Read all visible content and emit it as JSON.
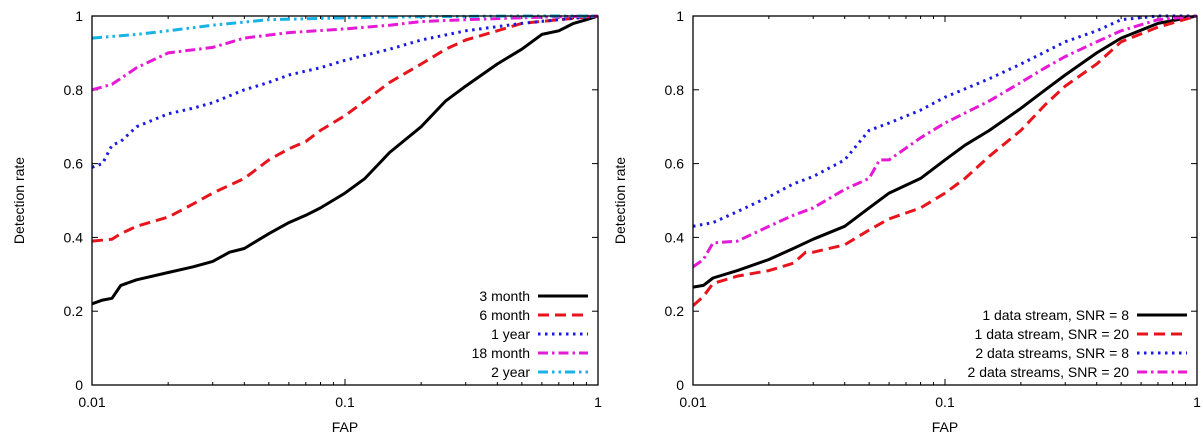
{
  "chart_data": [
    {
      "type": "line",
      "xlabel": "FAP",
      "ylabel": "Detection rate",
      "xscale": "log",
      "xlim": [
        0.01,
        1
      ],
      "ylim": [
        0,
        1
      ],
      "xticks": [
        "0.01",
        "0.1",
        "1"
      ],
      "yticks": [
        "0",
        "0.2",
        "0.4",
        "0.6",
        "0.8",
        "1"
      ],
      "legend_position": "bottom-right",
      "series": [
        {
          "name": "3 month",
          "color": "#000000",
          "dash": "solid",
          "x": [
            0.01,
            0.011,
            0.012,
            0.013,
            0.015,
            0.02,
            0.025,
            0.03,
            0.035,
            0.04,
            0.05,
            0.06,
            0.07,
            0.08,
            0.1,
            0.12,
            0.15,
            0.2,
            0.25,
            0.3,
            0.4,
            0.5,
            0.6,
            0.7,
            0.8,
            0.9,
            1.0
          ],
          "y": [
            0.22,
            0.23,
            0.235,
            0.27,
            0.285,
            0.305,
            0.32,
            0.335,
            0.36,
            0.37,
            0.41,
            0.44,
            0.46,
            0.48,
            0.52,
            0.56,
            0.63,
            0.7,
            0.77,
            0.81,
            0.87,
            0.91,
            0.95,
            0.96,
            0.98,
            0.99,
            1.0
          ]
        },
        {
          "name": "6 month",
          "color": "#e8141c",
          "dash": "dashed",
          "x": [
            0.01,
            0.012,
            0.013,
            0.015,
            0.02,
            0.025,
            0.03,
            0.04,
            0.05,
            0.06,
            0.07,
            0.08,
            0.1,
            0.12,
            0.15,
            0.2,
            0.25,
            0.3,
            0.4,
            0.5,
            0.7,
            1.0
          ],
          "y": [
            0.39,
            0.395,
            0.41,
            0.43,
            0.455,
            0.49,
            0.52,
            0.56,
            0.61,
            0.64,
            0.66,
            0.69,
            0.73,
            0.77,
            0.82,
            0.87,
            0.91,
            0.935,
            0.96,
            0.98,
            0.99,
            1.0
          ]
        },
        {
          "name": "1 year",
          "color": "#1a1ae6",
          "dash": "dotted",
          "x": [
            0.01,
            0.011,
            0.012,
            0.013,
            0.015,
            0.02,
            0.025,
            0.03,
            0.04,
            0.05,
            0.06,
            0.08,
            0.1,
            0.15,
            0.2,
            0.3,
            0.5,
            0.7,
            1.0
          ],
          "y": [
            0.59,
            0.6,
            0.65,
            0.66,
            0.7,
            0.735,
            0.75,
            0.765,
            0.8,
            0.82,
            0.84,
            0.86,
            0.88,
            0.91,
            0.935,
            0.96,
            0.98,
            0.99,
            1.0
          ]
        },
        {
          "name": "18 month",
          "color": "#e619d6",
          "dash": "dashdot",
          "x": [
            0.01,
            0.012,
            0.015,
            0.02,
            0.03,
            0.04,
            0.06,
            0.1,
            0.15,
            0.2,
            0.3,
            0.5,
            0.7,
            1.0
          ],
          "y": [
            0.8,
            0.815,
            0.86,
            0.9,
            0.915,
            0.94,
            0.955,
            0.965,
            0.975,
            0.985,
            0.99,
            0.995,
            0.998,
            1.0
          ]
        },
        {
          "name": "2 year",
          "color": "#17b3e6",
          "dash": "dashdotdot",
          "x": [
            0.01,
            0.015,
            0.02,
            0.03,
            0.05,
            0.1,
            0.2,
            0.5,
            1.0
          ],
          "y": [
            0.94,
            0.95,
            0.96,
            0.975,
            0.99,
            0.995,
            0.998,
            1.0,
            1.0
          ]
        }
      ]
    },
    {
      "type": "line",
      "xlabel": "FAP",
      "ylabel": "Detection rate",
      "xscale": "log",
      "xlim": [
        0.01,
        1
      ],
      "ylim": [
        0,
        1
      ],
      "xticks": [
        "0.01",
        "0.1",
        "1"
      ],
      "yticks": [
        "0",
        "0.2",
        "0.4",
        "0.6",
        "0.8",
        "1"
      ],
      "legend_position": "bottom-right",
      "series": [
        {
          "name": "1 data stream, SNR = 8",
          "color": "#000000",
          "dash": "solid",
          "x": [
            0.01,
            0.011,
            0.012,
            0.015,
            0.02,
            0.025,
            0.03,
            0.04,
            0.05,
            0.06,
            0.08,
            0.1,
            0.12,
            0.15,
            0.2,
            0.25,
            0.3,
            0.4,
            0.5,
            0.7,
            1.0
          ],
          "y": [
            0.265,
            0.27,
            0.29,
            0.31,
            0.34,
            0.37,
            0.395,
            0.43,
            0.48,
            0.52,
            0.56,
            0.61,
            0.65,
            0.69,
            0.75,
            0.8,
            0.84,
            0.9,
            0.94,
            0.98,
            1.0
          ]
        },
        {
          "name": "1 data stream, SNR = 20",
          "color": "#e8141c",
          "dash": "dashed",
          "x": [
            0.01,
            0.011,
            0.012,
            0.015,
            0.02,
            0.025,
            0.028,
            0.03,
            0.04,
            0.05,
            0.06,
            0.08,
            0.1,
            0.12,
            0.15,
            0.2,
            0.25,
            0.3,
            0.4,
            0.5,
            0.7,
            1.0
          ],
          "y": [
            0.215,
            0.24,
            0.275,
            0.295,
            0.31,
            0.33,
            0.36,
            0.36,
            0.38,
            0.42,
            0.45,
            0.48,
            0.52,
            0.56,
            0.62,
            0.69,
            0.76,
            0.81,
            0.87,
            0.93,
            0.97,
            1.0
          ]
        },
        {
          "name": "2 data streams, SNR = 8",
          "color": "#1a1ae6",
          "dash": "dotted",
          "x": [
            0.01,
            0.012,
            0.015,
            0.02,
            0.025,
            0.03,
            0.04,
            0.05,
            0.06,
            0.08,
            0.1,
            0.15,
            0.2,
            0.3,
            0.4,
            0.5,
            0.7,
            1.0
          ],
          "y": [
            0.43,
            0.44,
            0.47,
            0.51,
            0.545,
            0.565,
            0.61,
            0.69,
            0.71,
            0.745,
            0.78,
            0.83,
            0.87,
            0.93,
            0.96,
            0.99,
            1.0,
            1.0
          ]
        },
        {
          "name": "2 data streams, SNR = 20",
          "color": "#e619d6",
          "dash": "dashdot",
          "x": [
            0.01,
            0.011,
            0.012,
            0.015,
            0.02,
            0.025,
            0.03,
            0.04,
            0.05,
            0.055,
            0.06,
            0.08,
            0.1,
            0.15,
            0.2,
            0.25,
            0.3,
            0.4,
            0.5,
            0.7,
            1.0
          ],
          "y": [
            0.32,
            0.34,
            0.385,
            0.39,
            0.43,
            0.46,
            0.48,
            0.53,
            0.56,
            0.61,
            0.61,
            0.67,
            0.71,
            0.77,
            0.82,
            0.86,
            0.89,
            0.93,
            0.96,
            0.99,
            1.0
          ]
        }
      ]
    }
  ]
}
